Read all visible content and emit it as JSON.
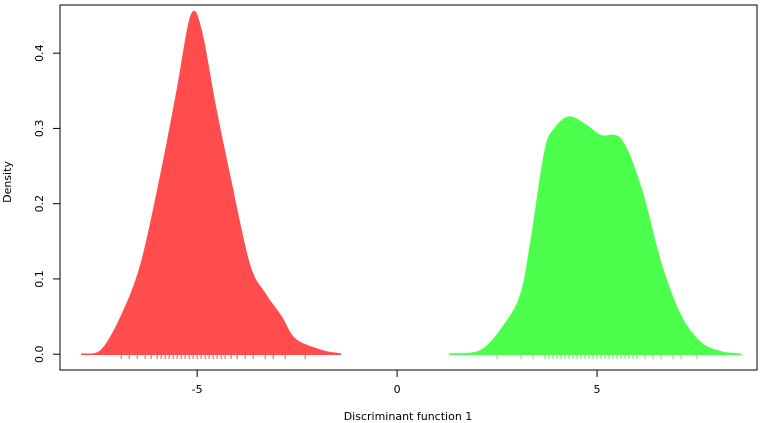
{
  "chart_data": {
    "type": "density",
    "xlabel": "Discriminant function 1",
    "ylabel": "Density",
    "xlim": [
      -8.43,
      9.0
    ],
    "ylim": [
      -0.021,
      0.464
    ],
    "xticks": [
      -5,
      0,
      5
    ],
    "yticks": [
      {
        "value": 0,
        "label": "0.0"
      },
      0.1,
      0.2,
      0.3,
      0.4
    ],
    "series": [
      {
        "color": "#ff4d4d",
        "x": [
          -7.9,
          -7.4,
          -6.9,
          -6.4,
          -5.9,
          -5.5,
          -5.15,
          -4.9,
          -4.55,
          -4.2,
          -3.7,
          -3.3,
          -2.9,
          -2.55,
          -1.9,
          -1.4
        ],
        "values": [
          0,
          0.005,
          0.05,
          0.12,
          0.24,
          0.35,
          0.45,
          0.43,
          0.33,
          0.24,
          0.12,
          0.08,
          0.05,
          0.02,
          0.005,
          0
        ],
        "rug": [
          -6.9,
          -6.7,
          -6.5,
          -6.3,
          -6.15,
          -6.0,
          -5.9,
          -5.8,
          -5.7,
          -5.6,
          -5.5,
          -5.4,
          -5.3,
          -5.2,
          -5.1,
          -5.0,
          -4.9,
          -4.8,
          -4.7,
          -4.6,
          -4.5,
          -4.4,
          -4.3,
          -4.15,
          -4.0,
          -3.8,
          -3.6,
          -3.3,
          -3.1,
          -2.8,
          -2.3
        ]
      },
      {
        "color": "#4dff4d",
        "x": [
          1.3,
          2.1,
          2.7,
          3.1,
          3.35,
          3.7,
          3.95,
          4.3,
          4.7,
          5.1,
          5.6,
          6.1,
          6.6,
          7.1,
          7.6,
          8.1,
          8.6
        ],
        "values": [
          0,
          0.005,
          0.04,
          0.08,
          0.15,
          0.27,
          0.3,
          0.315,
          0.305,
          0.29,
          0.285,
          0.22,
          0.12,
          0.05,
          0.015,
          0.003,
          0
        ],
        "rug": [
          2.5,
          3.1,
          3.4,
          3.7,
          3.8,
          3.9,
          4.0,
          4.1,
          4.2,
          4.3,
          4.4,
          4.5,
          4.6,
          4.7,
          4.8,
          4.9,
          5.0,
          5.1,
          5.2,
          5.3,
          5.4,
          5.5,
          5.6,
          5.7,
          5.8,
          5.9,
          6.0,
          6.2,
          6.4,
          6.6,
          6.9,
          7.1,
          7.5
        ]
      }
    ]
  }
}
